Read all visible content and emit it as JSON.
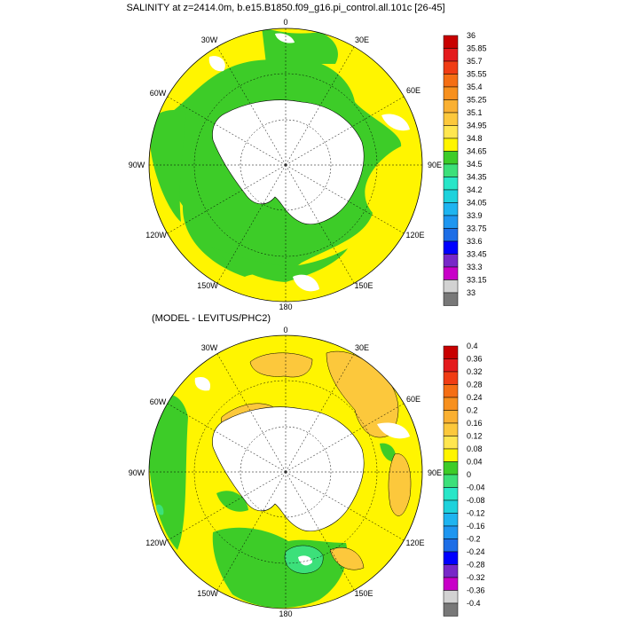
{
  "panels": [
    {
      "title": "SALINITY at z=2414.0m, b.e15.B1850.f09_g16.pi_control.all.101c [26-45]",
      "lon_labels": [
        "0",
        "30E",
        "60E",
        "90E",
        "120E",
        "150E",
        "180",
        "150W",
        "120W",
        "90W",
        "60W",
        "30W"
      ],
      "colorbar": {
        "labels": [
          "36",
          "35.85",
          "35.7",
          "35.55",
          "35.4",
          "35.25",
          "35.1",
          "34.95",
          "34.8",
          "34.65",
          "34.5",
          "34.35",
          "34.2",
          "34.05",
          "33.9",
          "33.75",
          "33.6",
          "33.45",
          "33.3",
          "33.15",
          "33"
        ],
        "colors": [
          "#c80000",
          "#e41a1c",
          "#f03c14",
          "#f56e14",
          "#f7901e",
          "#fab032",
          "#fcc83c",
          "#ffe650",
          "#fff500",
          "#3dcc28",
          "#3ce07a",
          "#28e6c8",
          "#1ed2dc",
          "#1eb4f0",
          "#1e96f0",
          "#1e6ee6",
          "#0000ff",
          "#7828c8",
          "#c800c8",
          "#d2d2d2",
          "#787878"
        ]
      }
    },
    {
      "title": "(MODEL - LEVITUS/PHC2)",
      "lon_labels": [
        "0",
        "30E",
        "60E",
        "90E",
        "120E",
        "150E",
        "180",
        "150W",
        "120W",
        "90W",
        "60W",
        "30W"
      ],
      "colorbar": {
        "labels": [
          "0.4",
          "0.36",
          "0.32",
          "0.28",
          "0.24",
          "0.2",
          "0.16",
          "0.12",
          "0.08",
          "0.04",
          "0",
          "-0.04",
          "-0.08",
          "-0.12",
          "-0.16",
          "-0.2",
          "-0.24",
          "-0.28",
          "-0.32",
          "-0.36",
          "-0.4"
        ],
        "colors": [
          "#c80000",
          "#e41a1c",
          "#f03c14",
          "#f56e14",
          "#f7901e",
          "#fab032",
          "#fcc83c",
          "#ffe650",
          "#fff500",
          "#3dcc28",
          "#3ce07a",
          "#28e6c8",
          "#1ed2dc",
          "#1eb4f0",
          "#1e96f0",
          "#1e6ee6",
          "#0000ff",
          "#7828c8",
          "#c800c8",
          "#d2d2d2",
          "#787878"
        ]
      }
    }
  ],
  "chart_data": [
    {
      "type": "heatmap",
      "title": "SALINITY at z=2414.0m, b.e15.B1850.f09_g16.pi_control.all.101c [26-45]",
      "projection": "south polar stereographic",
      "grid": true,
      "legend_placement": "right",
      "colorbar_levels": [
        "36",
        "35.85",
        "35.7",
        "35.55",
        "35.4",
        "35.25",
        "35.1",
        "34.95",
        "34.8",
        "34.65",
        "34.5",
        "34.35",
        "34.2",
        "34.05",
        "33.9",
        "33.75",
        "33.6",
        "33.45",
        "33.3",
        "33.15",
        "33"
      ],
      "field_colors": {
        "background": "#fff500",
        "band": "#3dcc28"
      }
    },
    {
      "type": "heatmap",
      "title": "(MODEL - LEVITUS/PHC2)",
      "projection": "south polar stereographic",
      "grid": true,
      "legend_placement": "right",
      "colorbar_levels": [
        "0.4",
        "0.36",
        "0.32",
        "0.28",
        "0.24",
        "0.2",
        "0.16",
        "0.12",
        "0.08",
        "0.04",
        "0",
        "-0.04",
        "-0.08",
        "-0.12",
        "-0.16",
        "-0.2",
        "-0.24",
        "-0.28",
        "-0.32",
        "-0.36",
        "-0.4"
      ],
      "field_colors": {
        "background": "#fff500",
        "band": "#3dcc28",
        "patches": "#fcc83c",
        "minimum": "#3ce07a"
      }
    }
  ]
}
